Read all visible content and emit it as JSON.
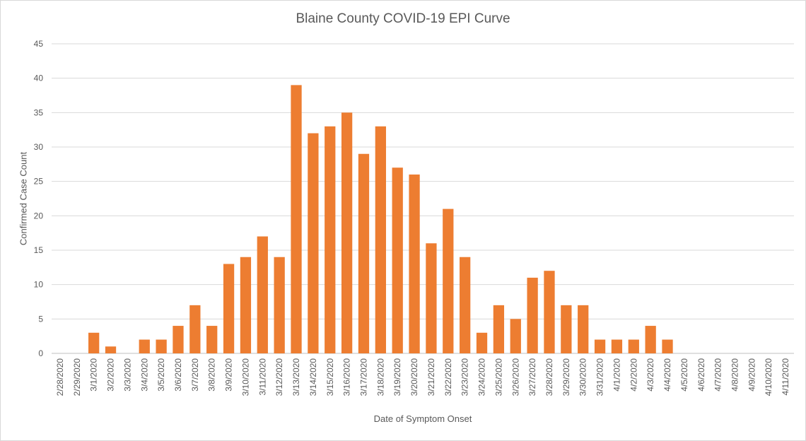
{
  "chart_data": {
    "type": "bar",
    "title": "Blaine County COVID-19 EPI Curve",
    "xlabel": "Date of Symptom Onset",
    "ylabel": "Confirmed Case Count",
    "ylim": [
      0,
      45
    ],
    "yticks": [
      0,
      5,
      10,
      15,
      20,
      25,
      30,
      35,
      40,
      45
    ],
    "grid": true,
    "bar_color": "#ED7D31",
    "categories": [
      "2/28/2020",
      "2/29/2020",
      "3/1/2020",
      "3/2/2020",
      "3/3/2020",
      "3/4/2020",
      "3/5/2020",
      "3/6/2020",
      "3/7/2020",
      "3/8/2020",
      "3/9/2020",
      "3/10/2020",
      "3/11/2020",
      "3/12/2020",
      "3/13/2020",
      "3/14/2020",
      "3/15/2020",
      "3/16/2020",
      "3/17/2020",
      "3/18/2020",
      "3/19/2020",
      "3/20/2020",
      "3/21/2020",
      "3/22/2020",
      "3/23/2020",
      "3/24/2020",
      "3/25/2020",
      "3/26/2020",
      "3/27/2020",
      "3/28/2020",
      "3/29/2020",
      "3/30/2020",
      "3/31/2020",
      "4/1/2020",
      "4/2/2020",
      "4/3/2020",
      "4/4/2020",
      "4/5/2020",
      "4/6/2020",
      "4/7/2020",
      "4/8/2020",
      "4/9/2020",
      "4/10/2020",
      "4/11/2020"
    ],
    "values": [
      0,
      0,
      3,
      1,
      0,
      2,
      2,
      4,
      7,
      4,
      13,
      14,
      17,
      14,
      39,
      32,
      33,
      35,
      29,
      33,
      27,
      26,
      16,
      21,
      14,
      3,
      7,
      5,
      11,
      12,
      7,
      7,
      2,
      2,
      2,
      4,
      2,
      0,
      0,
      0,
      0,
      0,
      0,
      0
    ]
  }
}
